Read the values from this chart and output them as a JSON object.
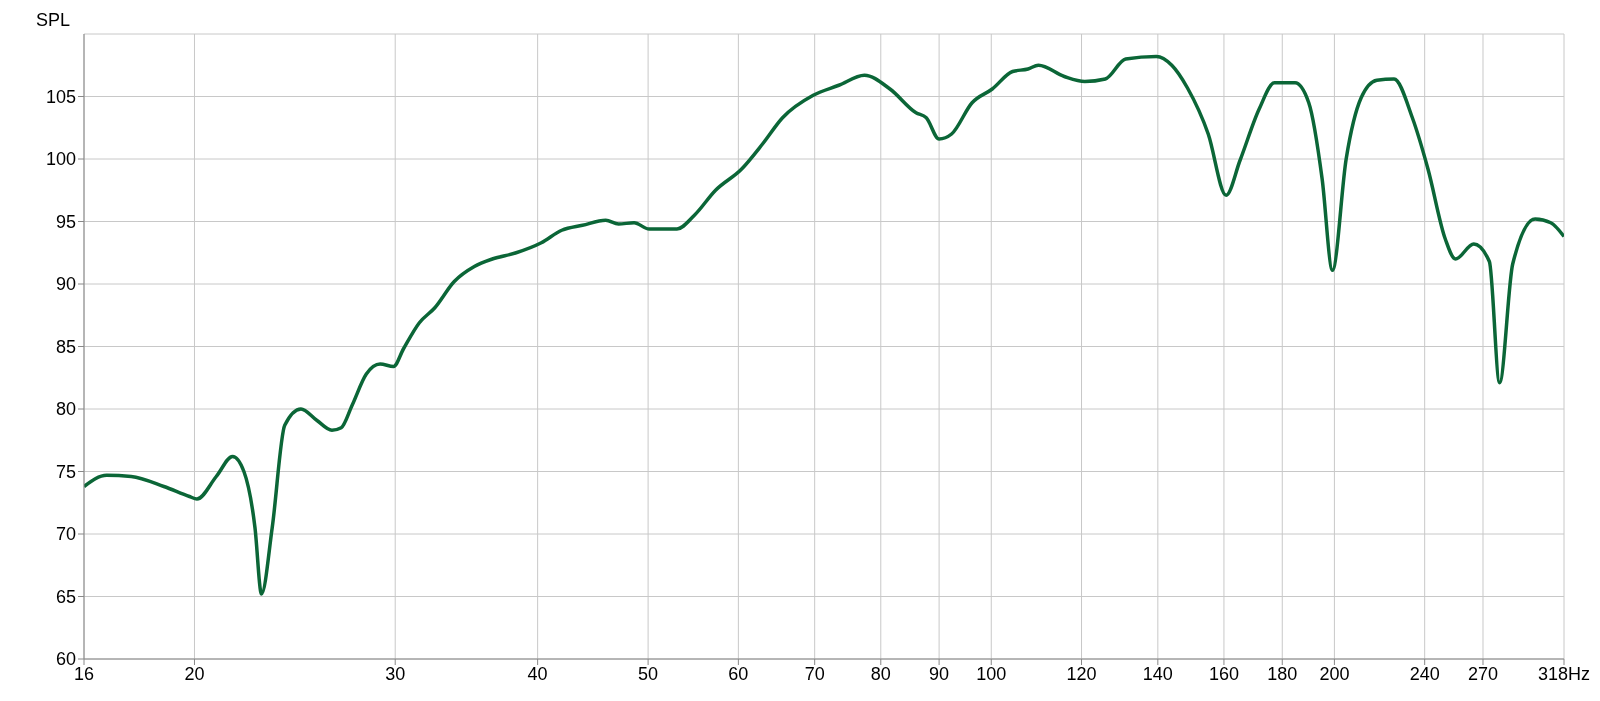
{
  "chart_data": {
    "type": "line",
    "ylabel": "SPL",
    "log": "x",
    "grid": true,
    "legend": false,
    "marker": "none",
    "line_style": "solid",
    "xlim": [
      16,
      318
    ],
    "ylim": [
      60,
      110
    ],
    "xticks": [
      16,
      20,
      30,
      40,
      50,
      60,
      70,
      80,
      90,
      100,
      120,
      140,
      160,
      180,
      200,
      240,
      270,
      {
        "value": 318,
        "label": "318Hz"
      }
    ],
    "yticks": [
      60,
      65,
      70,
      75,
      80,
      85,
      90,
      95,
      100,
      105
    ],
    "x": [
      16,
      16.75,
      17.6,
      18.8,
      19.8,
      20.1,
      20.9,
      21.6,
      22.1,
      22.6,
      22.9,
      23.4,
      24.0,
      24.8,
      25.6,
      26.4,
      26.9,
      27.5,
      28.3,
      29.1,
      29.9,
      30.5,
      31.5,
      32.5,
      33.8,
      35.2,
      36.5,
      38.3,
      40.3,
      42.0,
      43.8,
      45.9,
      47.1,
      48.6,
      50.1,
      51.7,
      53.0,
      54.9,
      57.3,
      60.4,
      63.0,
      65.6,
      69.8,
      73.5,
      77.4,
      81.5,
      85.9,
      87.7,
      90.0,
      92.3,
      96.2,
      100.2,
      104.4,
      107.7,
      110,
      115.9,
      120.8,
      125.9,
      131.2,
      139.6,
      144.0,
      148.6,
      155.0,
      160.7,
      165.3,
      171.8,
      177.2,
      184.7,
      189.9,
      195.1,
      199.2,
      204.8,
      211.1,
      217.9,
      225.6,
      234.1,
      241.6,
      250.2,
      255.4,
      265.0,
      273.5,
      279.2,
      286.7,
      300.0,
      309.6,
      318
    ],
    "series": [
      {
        "color": "#0b6637",
        "values": [
          73.8,
          74.7,
          74.6,
          73.8,
          73.0,
          72.8,
          74.6,
          76.2,
          75.0,
          70.5,
          65.2,
          70.5,
          78.7,
          80.0,
          79.1,
          78.3,
          78.5,
          80.3,
          82.8,
          83.6,
          83.4,
          84.8,
          86.9,
          88.1,
          90.2,
          91.4,
          92.0,
          92.5,
          93.3,
          94.3,
          94.7,
          95.1,
          94.8,
          94.9,
          94.4,
          94.4,
          94.4,
          95.5,
          97.5,
          99.2,
          101.2,
          103.3,
          105.1,
          105.9,
          106.7,
          105.6,
          103.7,
          103.3,
          101.6,
          102.0,
          104.5,
          105.6,
          107.0,
          107.2,
          107.5,
          106.6,
          106.2,
          106.4,
          108.0,
          108.2,
          107.5,
          105.7,
          102.0,
          97.1,
          99.9,
          104.0,
          106.1,
          106.1,
          104.5,
          98.4,
          91.1,
          100.0,
          104.9,
          106.3,
          106.4,
          103.3,
          99.2,
          93.6,
          92.0,
          93.2,
          91.8,
          82.1,
          91.6,
          95.2,
          94.9,
          93.8
        ]
      }
    ]
  }
}
